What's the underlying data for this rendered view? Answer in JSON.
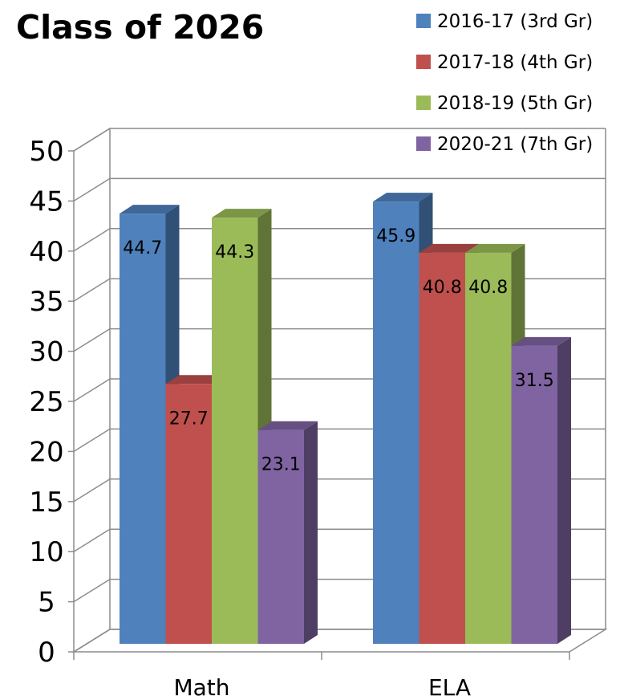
{
  "chart_data": {
    "type": "bar",
    "title": "Class of 2026",
    "categories": [
      "Math",
      "ELA"
    ],
    "series": [
      {
        "name": "2016-17 (3rd Gr)",
        "values": [
          44.7,
          45.9
        ],
        "color": "#4F81BD"
      },
      {
        "name": "2017-18 (4th Gr)",
        "values": [
          27.7,
          40.8
        ],
        "color": "#C0504D"
      },
      {
        "name": "2018-19 (5th Gr)",
        "values": [
          44.3,
          40.8
        ],
        "color": "#9BBB59"
      },
      {
        "name": "2020-21 (7th Gr)",
        "values": [
          23.1,
          31.5
        ],
        "color": "#8064A2"
      }
    ],
    "ylim": [
      0,
      50
    ],
    "yticks": [
      "0",
      "5",
      "10",
      "15",
      "20",
      "25",
      "30",
      "35",
      "40",
      "45",
      "50"
    ],
    "grid": true,
    "legend_position": "top-right",
    "style": "3d-clustered-column"
  }
}
